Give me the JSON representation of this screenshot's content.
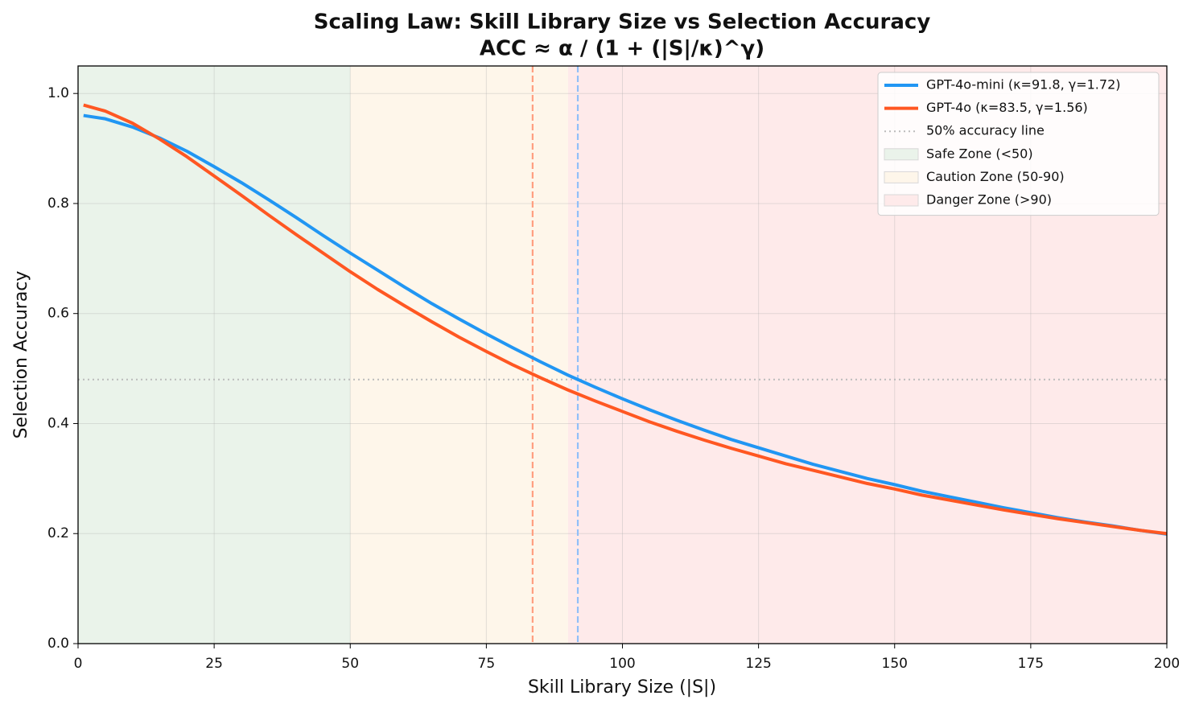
{
  "chart_data": {
    "type": "line",
    "title": "Scaling Law: Skill Library Size vs Selection Accuracy",
    "subtitle": "ACC ≈ α / (1 + (|S|/κ)^γ)",
    "x_label": "Skill Library Size (|S|)",
    "y_label": "Selection Accuracy",
    "x": [
      1,
      5,
      10,
      15,
      20,
      25,
      30,
      35,
      40,
      45,
      50,
      55,
      60,
      65,
      70,
      75,
      80,
      85,
      90,
      95,
      100,
      105,
      110,
      115,
      120,
      125,
      130,
      135,
      140,
      145,
      150,
      155,
      160,
      165,
      170,
      175,
      180,
      185,
      190,
      195,
      200
    ],
    "series": [
      {
        "name": "GPT-4o-mini (κ=91.8, γ=1.72)",
        "color": "#2196F3",
        "values": [
          0.96,
          0.954,
          0.939,
          0.919,
          0.895,
          0.867,
          0.838,
          0.807,
          0.775,
          0.742,
          0.71,
          0.679,
          0.648,
          0.618,
          0.59,
          0.563,
          0.537,
          0.512,
          0.488,
          0.466,
          0.445,
          0.425,
          0.406,
          0.388,
          0.371,
          0.356,
          0.341,
          0.326,
          0.313,
          0.3,
          0.289,
          0.277,
          0.267,
          0.257,
          0.247,
          0.238,
          0.229,
          0.221,
          0.214,
          0.206,
          0.199
        ]
      },
      {
        "name": "GPT-4o (κ=83.5, γ=1.56)",
        "color": "#FF5722",
        "values": [
          0.979,
          0.968,
          0.946,
          0.917,
          0.885,
          0.85,
          0.815,
          0.779,
          0.744,
          0.71,
          0.676,
          0.644,
          0.614,
          0.585,
          0.557,
          0.531,
          0.506,
          0.483,
          0.461,
          0.441,
          0.422,
          0.403,
          0.386,
          0.37,
          0.355,
          0.341,
          0.327,
          0.315,
          0.303,
          0.291,
          0.281,
          0.27,
          0.261,
          0.252,
          0.243,
          0.235,
          0.227,
          0.22,
          0.213,
          0.206,
          0.2
        ]
      }
    ],
    "hline": {
      "name": "50% accuracy line",
      "value": 0.48,
      "color": "#bbbbbb"
    },
    "vlines": [
      {
        "value": 83.5,
        "color": "#FF9E80"
      },
      {
        "value": 91.8,
        "color": "#90BFF9"
      }
    ],
    "zones": [
      {
        "name": "Safe Zone (<50)",
        "range": [
          0,
          50
        ],
        "color": "#eaf3ea"
      },
      {
        "name": "Caution Zone (50-90)",
        "range": [
          50,
          90
        ],
        "color": "#fef6ea"
      },
      {
        "name": "Danger Zone (>90)",
        "range": [
          90,
          200
        ],
        "color": "#feeaea"
      }
    ],
    "xlim": [
      0,
      200
    ],
    "xticks": [
      0,
      25,
      50,
      75,
      100,
      125,
      150,
      175,
      200
    ],
    "ylim": [
      0,
      1.05
    ],
    "yticks": [
      {
        "value": 0,
        "label": "0.0"
      },
      0.2,
      0.4,
      0.6,
      0.8,
      {
        "value": 1,
        "label": "1.0"
      }
    ],
    "grid": true,
    "legend": "upper right"
  }
}
